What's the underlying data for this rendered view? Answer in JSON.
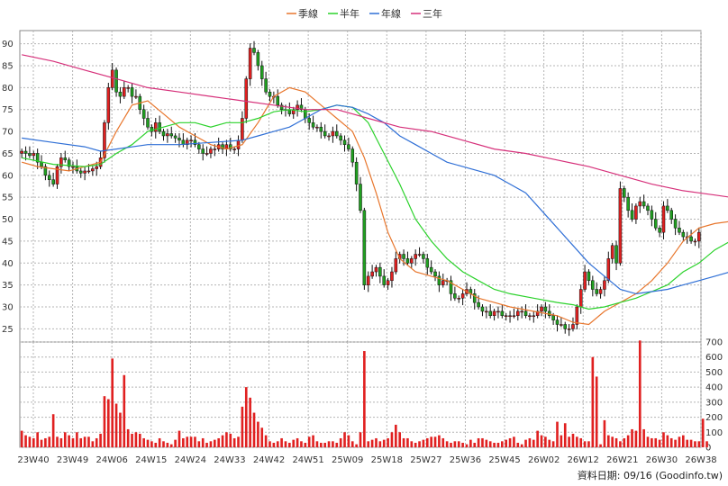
{
  "chart_data": {
    "type": "candlestick",
    "legend": [
      {
        "label": "季線",
        "color": "#E8762C"
      },
      {
        "label": "半年",
        "color": "#2BD22B"
      },
      {
        "label": "年線",
        "color": "#2F6FD6"
      },
      {
        "label": "三年",
        "color": "#D6307A"
      }
    ],
    "x_labels": [
      "23W40",
      "23W49",
      "24W06",
      "24W15",
      "24W24",
      "24W33",
      "24W42",
      "24W51",
      "25W09",
      "25W18",
      "25W27",
      "25W36",
      "25W45",
      "26W02",
      "26W12",
      "26W21",
      "26W30",
      "26W38"
    ],
    "price_ticks": [
      25,
      30,
      35,
      40,
      45,
      50,
      55,
      60,
      65,
      70,
      75,
      80,
      85,
      90
    ],
    "price_range": [
      22,
      93
    ],
    "volume_ticks": [
      0,
      100,
      200,
      300,
      400,
      500,
      600,
      700
    ],
    "volume_range": [
      0,
      700
    ],
    "candle_colors": {
      "up": "#E02020",
      "down": "#20A020"
    },
    "volume_color": "#E02020",
    "footer": "資料日期: 09/16  (Goodinfo.tw)",
    "closes": [
      65.5,
      65,
      64.5,
      65,
      63,
      62,
      60,
      59,
      58,
      62,
      64,
      63.5,
      62,
      62,
      61,
      60.5,
      61,
      61,
      61.5,
      62,
      64,
      72,
      80,
      84,
      79,
      78,
      80,
      80,
      78,
      78,
      75,
      73,
      71,
      70,
      72,
      70,
      69,
      69.5,
      69,
      68.5,
      68,
      67,
      68,
      68,
      67,
      66,
      65,
      65,
      66,
      66,
      67,
      66,
      67,
      66,
      66,
      68,
      73,
      82,
      89,
      88,
      85,
      82,
      79,
      78,
      78,
      76,
      75,
      75,
      74,
      75,
      76,
      75,
      73,
      72,
      71,
      71,
      70,
      69,
      69,
      70,
      69,
      68,
      67,
      66,
      63,
      58,
      52,
      35,
      37,
      38,
      39,
      37,
      35,
      36,
      38,
      41,
      42,
      41,
      40,
      41,
      42,
      42,
      41,
      39,
      38,
      37,
      35,
      36,
      36,
      33,
      32,
      32,
      33,
      34,
      33,
      31,
      30,
      29,
      29,
      28,
      29,
      29,
      28,
      28,
      28,
      28,
      29,
      29,
      28,
      28,
      28,
      29,
      30,
      29,
      28,
      27,
      26,
      26,
      25,
      25,
      26,
      30,
      34,
      38,
      36,
      34,
      33,
      34,
      36,
      41,
      44,
      40,
      57,
      55,
      52,
      50,
      53,
      54,
      53,
      52,
      50,
      48,
      47,
      53,
      52,
      50,
      48,
      47,
      46,
      46,
      45,
      45,
      47
    ],
    "volumes": [
      110,
      80,
      70,
      60,
      100,
      50,
      60,
      70,
      220,
      70,
      60,
      100,
      80,
      60,
      100,
      60,
      70,
      70,
      40,
      60,
      90,
      340,
      320,
      590,
      290,
      230,
      480,
      120,
      90,
      100,
      90,
      60,
      50,
      40,
      30,
      60,
      40,
      30,
      20,
      50,
      110,
      60,
      70,
      70,
      70,
      40,
      60,
      30,
      40,
      50,
      60,
      80,
      100,
      90,
      60,
      70,
      270,
      400,
      330,
      230,
      170,
      130,
      80,
      40,
      30,
      40,
      60,
      40,
      30,
      50,
      60,
      40,
      30,
      70,
      80,
      40,
      30,
      30,
      40,
      40,
      30,
      60,
      100,
      80,
      40,
      20,
      100,
      640,
      40,
      50,
      60,
      40,
      50,
      60,
      100,
      150,
      100,
      60,
      60,
      40,
      30,
      40,
      50,
      60,
      70,
      70,
      80,
      60,
      40,
      30,
      40,
      40,
      30,
      20,
      50,
      30,
      60,
      60,
      50,
      40,
      30,
      30,
      40,
      50,
      60,
      70,
      30,
      20,
      50,
      60,
      50,
      110,
      80,
      70,
      50,
      40,
      170,
      80,
      160,
      70,
      90,
      70,
      60,
      40,
      40,
      600,
      470,
      20,
      180,
      80,
      70,
      60,
      40,
      60,
      80,
      120,
      110,
      710,
      120,
      70,
      60,
      60,
      50,
      100,
      80,
      60,
      50,
      70,
      80,
      50,
      50,
      40,
      40,
      190,
      40
    ],
    "ma_quarter": [
      [
        0,
        63
      ],
      [
        4,
        62
      ],
      [
        12,
        61
      ],
      [
        20,
        63
      ],
      [
        24,
        70
      ],
      [
        28,
        76
      ],
      [
        32,
        77
      ],
      [
        36,
        74
      ],
      [
        40,
        71
      ],
      [
        44,
        69
      ],
      [
        48,
        67
      ],
      [
        52,
        66
      ],
      [
        56,
        67
      ],
      [
        60,
        72
      ],
      [
        64,
        78
      ],
      [
        68,
        80
      ],
      [
        72,
        79
      ],
      [
        76,
        76
      ],
      [
        80,
        73
      ],
      [
        84,
        70
      ],
      [
        87,
        64
      ],
      [
        90,
        56
      ],
      [
        93,
        47
      ],
      [
        96,
        41
      ],
      [
        100,
        38
      ],
      [
        104,
        37
      ],
      [
        108,
        36
      ],
      [
        112,
        34
      ],
      [
        116,
        32
      ],
      [
        120,
        31
      ],
      [
        124,
        30
      ],
      [
        130,
        29
      ],
      [
        136,
        28
      ],
      [
        140,
        26.5
      ],
      [
        144,
        26
      ],
      [
        148,
        29
      ],
      [
        152,
        31
      ],
      [
        156,
        33
      ],
      [
        160,
        36
      ],
      [
        164,
        40
      ],
      [
        168,
        45
      ],
      [
        172,
        48
      ],
      [
        176,
        49
      ],
      [
        180,
        49.5
      ]
    ],
    "ma_half": [
      [
        0,
        64
      ],
      [
        8,
        62.5
      ],
      [
        16,
        62
      ],
      [
        20,
        62.5
      ],
      [
        24,
        65
      ],
      [
        28,
        67
      ],
      [
        32,
        70
      ],
      [
        36,
        71
      ],
      [
        40,
        72
      ],
      [
        44,
        72
      ],
      [
        48,
        71
      ],
      [
        52,
        72
      ],
      [
        56,
        72
      ],
      [
        60,
        73
      ],
      [
        64,
        74.5
      ],
      [
        68,
        75
      ],
      [
        72,
        74.5
      ],
      [
        76,
        75
      ],
      [
        80,
        76
      ],
      [
        84,
        75.5
      ],
      [
        88,
        72
      ],
      [
        92,
        65
      ],
      [
        96,
        58
      ],
      [
        100,
        50
      ],
      [
        104,
        45
      ],
      [
        108,
        41
      ],
      [
        112,
        38
      ],
      [
        116,
        36
      ],
      [
        120,
        34
      ],
      [
        124,
        33
      ],
      [
        130,
        32
      ],
      [
        136,
        31
      ],
      [
        140,
        30.5
      ],
      [
        144,
        29.5
      ],
      [
        148,
        30
      ],
      [
        152,
        31
      ],
      [
        156,
        32
      ],
      [
        160,
        33.5
      ],
      [
        164,
        35
      ],
      [
        168,
        38
      ],
      [
        172,
        40
      ],
      [
        176,
        43
      ],
      [
        180,
        45
      ]
    ],
    "ma_year": [
      [
        0,
        68.5
      ],
      [
        8,
        67.5
      ],
      [
        16,
        66.5
      ],
      [
        20,
        65.5
      ],
      [
        24,
        66
      ],
      [
        32,
        67
      ],
      [
        40,
        67
      ],
      [
        48,
        67.5
      ],
      [
        56,
        68
      ],
      [
        60,
        69
      ],
      [
        64,
        70
      ],
      [
        68,
        71
      ],
      [
        72,
        73
      ],
      [
        76,
        75
      ],
      [
        80,
        76
      ],
      [
        84,
        75.5
      ],
      [
        88,
        74
      ],
      [
        92,
        72
      ],
      [
        96,
        69
      ],
      [
        100,
        67
      ],
      [
        104,
        65
      ],
      [
        108,
        63
      ],
      [
        112,
        62
      ],
      [
        116,
        61
      ],
      [
        120,
        60
      ],
      [
        124,
        58
      ],
      [
        128,
        56
      ],
      [
        132,
        52
      ],
      [
        136,
        48
      ],
      [
        140,
        44
      ],
      [
        144,
        40
      ],
      [
        148,
        37
      ],
      [
        152,
        34
      ],
      [
        156,
        33
      ],
      [
        160,
        33.5
      ],
      [
        164,
        34
      ],
      [
        168,
        35
      ],
      [
        172,
        36
      ],
      [
        176,
        37
      ],
      [
        180,
        38
      ]
    ],
    "ma_3year": [
      [
        0,
        87.5
      ],
      [
        8,
        86
      ],
      [
        16,
        84
      ],
      [
        24,
        82
      ],
      [
        32,
        80
      ],
      [
        40,
        79
      ],
      [
        48,
        78
      ],
      [
        56,
        77
      ],
      [
        64,
        76
      ],
      [
        72,
        75
      ],
      [
        80,
        75
      ],
      [
        84,
        74
      ],
      [
        88,
        73
      ],
      [
        92,
        72
      ],
      [
        96,
        71
      ],
      [
        104,
        70
      ],
      [
        112,
        68
      ],
      [
        120,
        66
      ],
      [
        128,
        65
      ],
      [
        136,
        63.5
      ],
      [
        144,
        62
      ],
      [
        152,
        60
      ],
      [
        160,
        58
      ],
      [
        168,
        56.5
      ],
      [
        172,
        56
      ],
      [
        176,
        55.5
      ],
      [
        180,
        55
      ]
    ]
  }
}
